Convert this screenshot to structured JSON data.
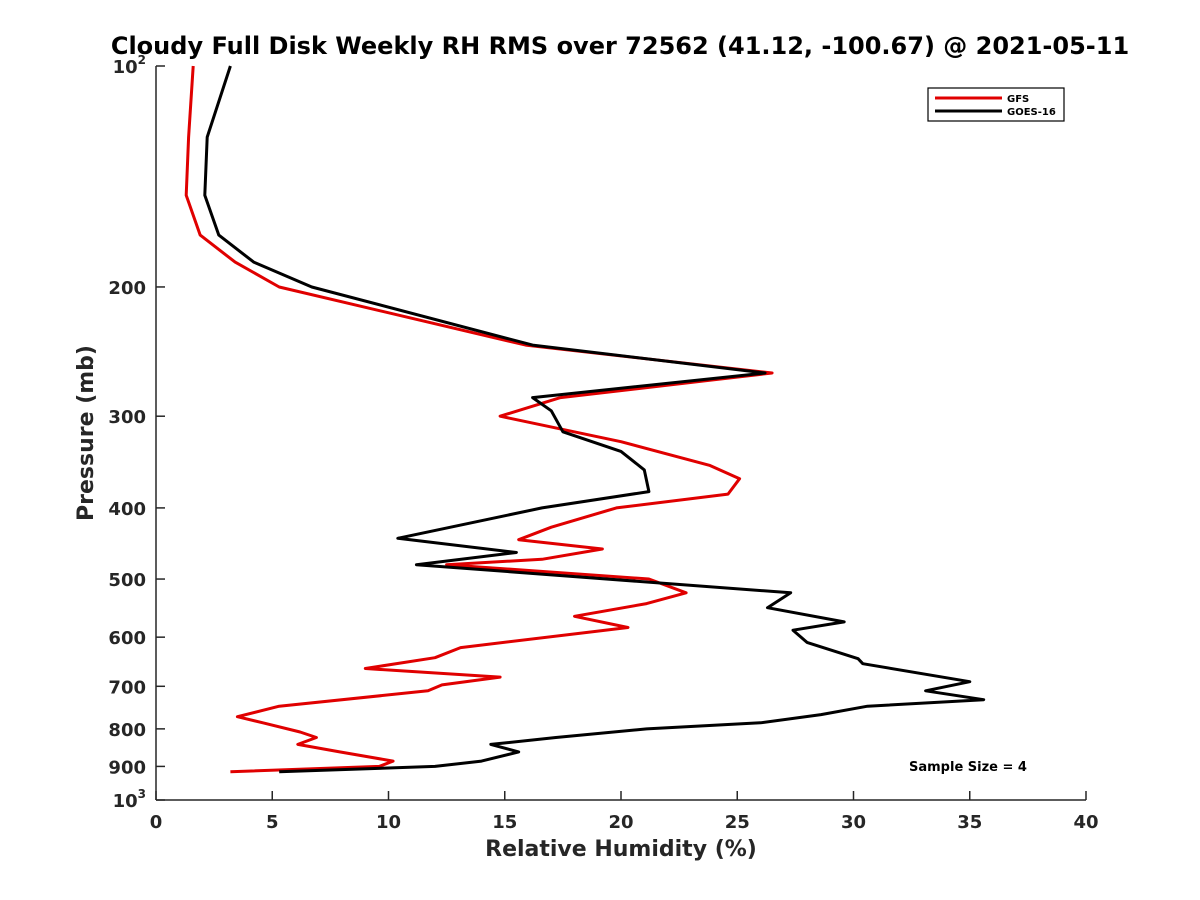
{
  "chart_data": {
    "type": "line",
    "title": "Cloudy Full Disk Weekly RH RMS over 72562 (41.12, -100.67) @ 2021-05-11",
    "xlabel": "Relative Humidity (%)",
    "ylabel": "Pressure (mb)",
    "xlim": [
      0,
      40
    ],
    "ylim": [
      100,
      1000
    ],
    "y_scale": "log",
    "y_reversed": true,
    "grid": false,
    "legend_position": "top-right",
    "annotation": "Sample Size = 4",
    "x_ticks": [
      "0",
      "5",
      "10",
      "15",
      "20",
      "25",
      "30",
      "35",
      "40"
    ],
    "y_ticks": [
      {
        "value": 100,
        "base": "10",
        "sup": "2"
      },
      {
        "value": 200,
        "base": "200",
        "sup": ""
      },
      {
        "value": 300,
        "base": "300",
        "sup": ""
      },
      {
        "value": 400,
        "base": "400",
        "sup": ""
      },
      {
        "value": 500,
        "base": "500",
        "sup": ""
      },
      {
        "value": 600,
        "base": "600",
        "sup": ""
      },
      {
        "value": 700,
        "base": "700",
        "sup": ""
      },
      {
        "value": 800,
        "base": "800",
        "sup": ""
      },
      {
        "value": 900,
        "base": "900",
        "sup": ""
      },
      {
        "value": 1000,
        "base": "10",
        "sup": "3"
      }
    ],
    "series": [
      {
        "name": "GFS",
        "color": "#e00000",
        "points": [
          [
            1.6,
            100
          ],
          [
            1.4,
            125
          ],
          [
            1.3,
            150
          ],
          [
            1.9,
            170
          ],
          [
            3.4,
            185
          ],
          [
            5.3,
            200
          ],
          [
            15.9,
            240
          ],
          [
            26.5,
            262
          ],
          [
            17.4,
            283
          ],
          [
            14.8,
            300
          ],
          [
            20.0,
            325
          ],
          [
            23.8,
            350
          ],
          [
            25.1,
            365
          ],
          [
            24.6,
            383
          ],
          [
            19.8,
            400
          ],
          [
            17.0,
            425
          ],
          [
            15.6,
            442
          ],
          [
            19.2,
            455
          ],
          [
            16.6,
            470
          ],
          [
            12.5,
            478
          ],
          [
            21.2,
            500
          ],
          [
            22.8,
            522
          ],
          [
            21.1,
            540
          ],
          [
            18.0,
            562
          ],
          [
            20.3,
            582
          ],
          [
            13.1,
            620
          ],
          [
            12.0,
            640
          ],
          [
            9.0,
            662
          ],
          [
            14.8,
            680
          ],
          [
            12.3,
            697
          ],
          [
            11.7,
            710
          ],
          [
            5.3,
            745
          ],
          [
            3.5,
            770
          ],
          [
            4.6,
            785
          ],
          [
            6.2,
            808
          ],
          [
            6.9,
            822
          ],
          [
            6.1,
            840
          ],
          [
            7.9,
            860
          ],
          [
            10.2,
            885
          ],
          [
            9.6,
            900
          ],
          [
            3.2,
            915
          ]
        ]
      },
      {
        "name": "GOES-16",
        "color": "#000000",
        "points": [
          [
            3.2,
            100
          ],
          [
            2.2,
            125
          ],
          [
            2.1,
            150
          ],
          [
            2.7,
            170
          ],
          [
            4.2,
            185
          ],
          [
            6.7,
            200
          ],
          [
            16.2,
            240
          ],
          [
            26.2,
            262
          ],
          [
            16.2,
            283
          ],
          [
            17.0,
            295
          ],
          [
            17.5,
            315
          ],
          [
            20.0,
            335
          ],
          [
            21.0,
            355
          ],
          [
            21.2,
            380
          ],
          [
            16.6,
            400
          ],
          [
            10.4,
            440
          ],
          [
            15.5,
            460
          ],
          [
            11.2,
            478
          ],
          [
            27.3,
            522
          ],
          [
            26.3,
            547
          ],
          [
            29.6,
            572
          ],
          [
            27.4,
            587
          ],
          [
            28.0,
            610
          ],
          [
            30.2,
            642
          ],
          [
            30.4,
            652
          ],
          [
            35.0,
            690
          ],
          [
            33.1,
            710
          ],
          [
            35.6,
            730
          ],
          [
            30.6,
            745
          ],
          [
            28.6,
            765
          ],
          [
            26.0,
            785
          ],
          [
            21.1,
            800
          ],
          [
            17.2,
            822
          ],
          [
            14.4,
            840
          ],
          [
            15.6,
            860
          ],
          [
            14.0,
            885
          ],
          [
            12.0,
            900
          ],
          [
            5.3,
            915
          ]
        ]
      }
    ]
  }
}
